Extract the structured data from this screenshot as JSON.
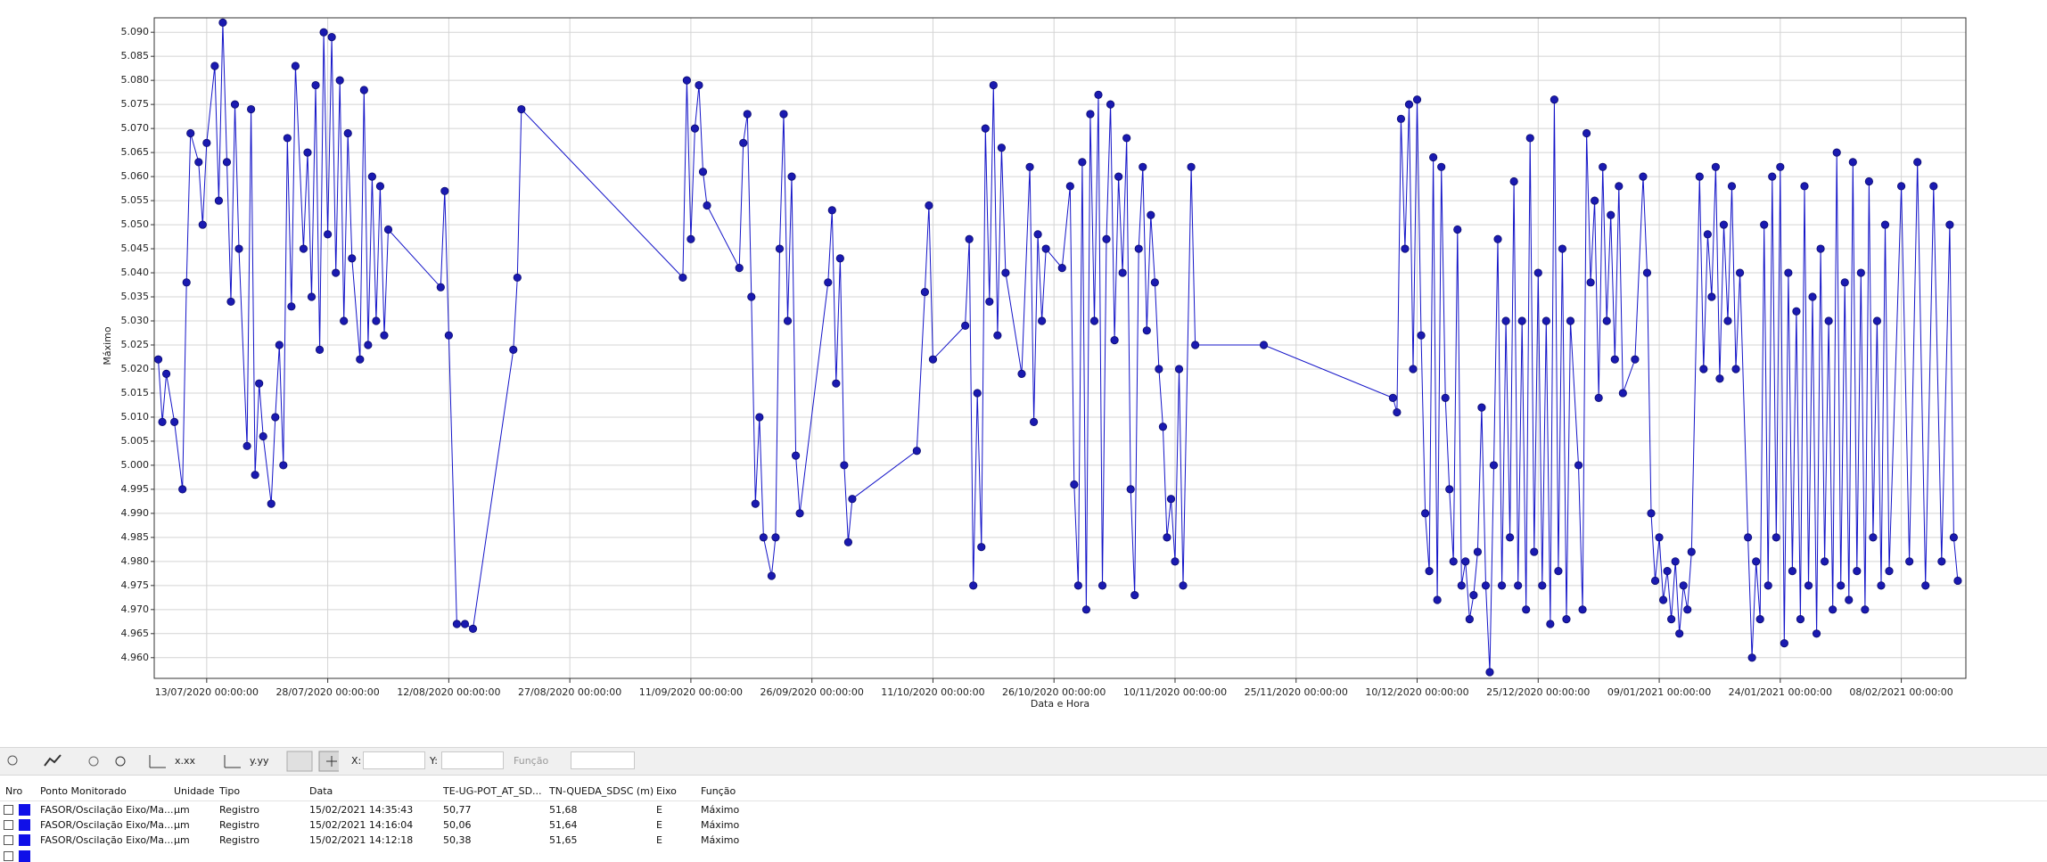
{
  "chart_data": {
    "type": "line",
    "y_label": "Máximo",
    "x_label": "Data e Hora",
    "color": "#1414c8",
    "grid": true,
    "xlim": [
      "06/07/2020 12:00:00",
      "16/02/2021 00:00:00"
    ],
    "xticks": [
      "13/07/2020 00:00:00",
      "28/07/2020 00:00:00",
      "12/08/2020 00:00:00",
      "27/08/2020 00:00:00",
      "11/09/2020 00:00:00",
      "26/09/2020 00:00:00",
      "11/10/2020 00:00:00",
      "26/10/2020 00:00:00",
      "10/11/2020 00:00:00",
      "25/11/2020 00:00:00",
      "10/12/2020 00:00:00",
      "25/12/2020 00:00:00",
      "09/01/2021 00:00:00",
      "24/01/2021 00:00:00",
      "08/02/2021 00:00:00"
    ],
    "ylim": [
      4.9557,
      5.093
    ],
    "yticks": [
      {
        "value": 4.96,
        "label": "4.960"
      },
      {
        "value": 4.965,
        "label": "4.965"
      },
      {
        "value": 4.97,
        "label": "4.970"
      },
      {
        "value": 4.975,
        "label": "4.975"
      },
      {
        "value": 4.98,
        "label": "4.980"
      },
      {
        "value": 4.985,
        "label": "4.985"
      },
      {
        "value": 4.99,
        "label": "4.990"
      },
      {
        "value": 4.995,
        "label": "4.995"
      },
      {
        "value": 5,
        "label": "5.000"
      },
      {
        "value": 5.005,
        "label": "5.005"
      },
      {
        "value": 5.01,
        "label": "5.010"
      },
      {
        "value": 5.015,
        "label": "5.015"
      },
      {
        "value": 5.02,
        "label": "5.020"
      },
      {
        "value": 5.025,
        "label": "5.025"
      },
      {
        "value": 5.03,
        "label": "5.030"
      },
      {
        "value": 5.035,
        "label": "5.035"
      },
      {
        "value": 5.04,
        "label": "5.040"
      },
      {
        "value": 5.045,
        "label": "5.045"
      },
      {
        "value": 5.05,
        "label": "5.050"
      },
      {
        "value": 5.055,
        "label": "5.055"
      },
      {
        "value": 5.06,
        "label": "5.060"
      },
      {
        "value": 5.065,
        "label": "5.065"
      },
      {
        "value": 5.07,
        "label": "5.070"
      },
      {
        "value": 5.075,
        "label": "5.075"
      },
      {
        "value": 5.08,
        "label": "5.080"
      },
      {
        "value": 5.085,
        "label": "5.085"
      },
      {
        "value": 5.09,
        "label": "5.090"
      }
    ],
    "x": [
      "07/07/2020 00:00:00",
      "07/07/2020 12:00:00",
      "08/07/2020 00:00:00",
      "09/07/2020 00:00:00",
      "10/07/2020 00:00:00",
      "10/07/2020 12:00:00",
      "11/07/2020 00:00:00",
      "12/07/2020 00:00:00",
      "12/07/2020 12:00:00",
      "13/07/2020 00:00:00",
      "14/07/2020 00:00:00",
      "14/07/2020 12:00:00",
      "15/07/2020 00:00:00",
      "15/07/2020 12:00:00",
      "16/07/2020 00:00:00",
      "16/07/2020 12:00:00",
      "17/07/2020 00:00:00",
      "18/07/2020 00:00:00",
      "18/07/2020 12:00:00",
      "19/07/2020 00:00:00",
      "19/07/2020 12:00:00",
      "20/07/2020 00:00:00",
      "21/07/2020 00:00:00",
      "21/07/2020 12:00:00",
      "22/07/2020 00:00:00",
      "22/07/2020 12:00:00",
      "23/07/2020 00:00:00",
      "23/07/2020 12:00:00",
      "24/07/2020 00:00:00",
      "25/07/2020 00:00:00",
      "25/07/2020 12:00:00",
      "26/07/2020 00:00:00",
      "26/07/2020 12:00:00",
      "27/07/2020 00:00:00",
      "27/07/2020 12:00:00",
      "28/07/2020 00:00:00",
      "28/07/2020 12:00:00",
      "29/07/2020 00:00:00",
      "29/07/2020 12:00:00",
      "30/07/2020 00:00:00",
      "30/07/2020 12:00:00",
      "31/07/2020 00:00:00",
      "01/08/2020 00:00:00",
      "01/08/2020 12:00:00",
      "02/08/2020 00:00:00",
      "02/08/2020 12:00:00",
      "03/08/2020 00:00:00",
      "03/08/2020 12:00:00",
      "04/08/2020 00:00:00",
      "04/08/2020 12:00:00",
      "11/08/2020 00:00:00",
      "11/08/2020 12:00:00",
      "12/08/2020 00:00:00",
      "13/08/2020 00:00:00",
      "14/08/2020 00:00:00",
      "15/08/2020 00:00:00",
      "20/08/2020 00:00:00",
      "20/08/2020 12:00:00",
      "21/08/2020 00:00:00",
      "10/09/2020 00:00:00",
      "10/09/2020 12:00:00",
      "11/09/2020 00:00:00",
      "11/09/2020 12:00:00",
      "12/09/2020 00:00:00",
      "12/09/2020 12:00:00",
      "13/09/2020 00:00:00",
      "17/09/2020 00:00:00",
      "17/09/2020 12:00:00",
      "18/09/2020 00:00:00",
      "18/09/2020 12:00:00",
      "19/09/2020 00:00:00",
      "19/09/2020 12:00:00",
      "20/09/2020 00:00:00",
      "21/09/2020 00:00:00",
      "21/09/2020 12:00:00",
      "22/09/2020 00:00:00",
      "22/09/2020 12:00:00",
      "23/09/2020 00:00:00",
      "23/09/2020 12:00:00",
      "24/09/2020 00:00:00",
      "24/09/2020 12:00:00",
      "28/09/2020 00:00:00",
      "28/09/2020 12:00:00",
      "29/09/2020 00:00:00",
      "29/09/2020 12:00:00",
      "30/09/2020 00:00:00",
      "30/09/2020 12:00:00",
      "01/10/2020 00:00:00",
      "09/10/2020 00:00:00",
      "10/10/2020 00:00:00",
      "10/10/2020 12:00:00",
      "11/10/2020 00:00:00",
      "15/10/2020 00:00:00",
      "15/10/2020 12:00:00",
      "16/10/2020 00:00:00",
      "16/10/2020 12:00:00",
      "17/10/2020 00:00:00",
      "17/10/2020 12:00:00",
      "18/10/2020 00:00:00",
      "18/10/2020 12:00:00",
      "19/10/2020 00:00:00",
      "19/10/2020 12:00:00",
      "20/10/2020 00:00:00",
      "22/10/2020 00:00:00",
      "23/10/2020 00:00:00",
      "23/10/2020 12:00:00",
      "24/10/2020 00:00:00",
      "24/10/2020 12:00:00",
      "25/10/2020 00:00:00",
      "27/10/2020 00:00:00",
      "28/10/2020 00:00:00",
      "28/10/2020 12:00:00",
      "29/10/2020 00:00:00",
      "29/10/2020 12:00:00",
      "30/10/2020 00:00:00",
      "30/10/2020 12:00:00",
      "31/10/2020 00:00:00",
      "31/10/2020 12:00:00",
      "01/11/2020 00:00:00",
      "01/11/2020 12:00:00",
      "02/11/2020 00:00:00",
      "02/11/2020 12:00:00",
      "03/11/2020 00:00:00",
      "03/11/2020 12:00:00",
      "04/11/2020 00:00:00",
      "04/11/2020 12:00:00",
      "05/11/2020 00:00:00",
      "05/11/2020 12:00:00",
      "06/11/2020 00:00:00",
      "06/11/2020 12:00:00",
      "07/11/2020 00:00:00",
      "07/11/2020 12:00:00",
      "08/11/2020 00:00:00",
      "08/11/2020 12:00:00",
      "09/11/2020 00:00:00",
      "09/11/2020 12:00:00",
      "10/11/2020 00:00:00",
      "10/11/2020 12:00:00",
      "11/11/2020 00:00:00",
      "12/11/2020 00:00:00",
      "12/11/2020 12:00:00",
      "21/11/2020 00:00:00",
      "07/12/2020 00:00:00",
      "07/12/2020 12:00:00",
      "08/12/2020 00:00:00",
      "08/12/2020 12:00:00",
      "09/12/2020 00:00:00",
      "09/12/2020 12:00:00",
      "10/12/2020 00:00:00",
      "10/12/2020 12:00:00",
      "11/12/2020 00:00:00",
      "11/12/2020 12:00:00",
      "12/12/2020 00:00:00",
      "12/12/2020 12:00:00",
      "13/12/2020 00:00:00",
      "13/12/2020 12:00:00",
      "14/12/2020 00:00:00",
      "14/12/2020 12:00:00",
      "15/12/2020 00:00:00",
      "15/12/2020 12:00:00",
      "16/12/2020 00:00:00",
      "16/12/2020 12:00:00",
      "17/12/2020 00:00:00",
      "17/12/2020 12:00:00",
      "18/12/2020 00:00:00",
      "18/12/2020 12:00:00",
      "19/12/2020 00:00:00",
      "19/12/2020 12:00:00",
      "20/12/2020 00:00:00",
      "20/12/2020 12:00:00",
      "21/12/2020 00:00:00",
      "21/12/2020 12:00:00",
      "22/12/2020 00:00:00",
      "22/12/2020 12:00:00",
      "23/12/2020 00:00:00",
      "23/12/2020 12:00:00",
      "24/12/2020 00:00:00",
      "24/12/2020 12:00:00",
      "25/12/2020 00:00:00",
      "25/12/2020 12:00:00",
      "26/12/2020 00:00:00",
      "26/12/2020 12:00:00",
      "27/12/2020 00:00:00",
      "27/12/2020 12:00:00",
      "28/12/2020 00:00:00",
      "28/12/2020 12:00:00",
      "29/12/2020 00:00:00",
      "30/12/2020 00:00:00",
      "30/12/2020 12:00:00",
      "31/12/2020 00:00:00",
      "31/12/2020 12:00:00",
      "01/01/2021 00:00:00",
      "01/01/2021 12:00:00",
      "02/01/2021 00:00:00",
      "02/01/2021 12:00:00",
      "03/01/2021 00:00:00",
      "03/01/2021 12:00:00",
      "04/01/2021 00:00:00",
      "04/01/2021 12:00:00",
      "06/01/2021 00:00:00",
      "07/01/2021 00:00:00",
      "07/01/2021 12:00:00",
      "08/01/2021 00:00:00",
      "08/01/2021 12:00:00",
      "09/01/2021 00:00:00",
      "09/01/2021 12:00:00",
      "10/01/2021 00:00:00",
      "10/01/2021 12:00:00",
      "11/01/2021 00:00:00",
      "11/01/2021 12:00:00",
      "12/01/2021 00:00:00",
      "12/01/2021 12:00:00",
      "13/01/2021 00:00:00",
      "14/01/2021 00:00:00",
      "14/01/2021 12:00:00",
      "15/01/2021 00:00:00",
      "15/01/2021 12:00:00",
      "16/01/2021 00:00:00",
      "16/01/2021 12:00:00",
      "17/01/2021 00:00:00",
      "17/01/2021 12:00:00",
      "18/01/2021 00:00:00",
      "18/01/2021 12:00:00",
      "19/01/2021 00:00:00",
      "20/01/2021 00:00:00",
      "20/01/2021 12:00:00",
      "21/01/2021 00:00:00",
      "21/01/2021 12:00:00",
      "22/01/2021 00:00:00",
      "22/01/2021 12:00:00",
      "23/01/2021 00:00:00",
      "23/01/2021 12:00:00",
      "24/01/2021 00:00:00",
      "24/01/2021 12:00:00",
      "25/01/2021 00:00:00",
      "25/01/2021 12:00:00",
      "26/01/2021 00:00:00",
      "26/01/2021 12:00:00",
      "27/01/2021 00:00:00",
      "27/01/2021 12:00:00",
      "28/01/2021 00:00:00",
      "28/01/2021 12:00:00",
      "29/01/2021 00:00:00",
      "29/01/2021 12:00:00",
      "30/01/2021 00:00:00",
      "30/01/2021 12:00:00",
      "31/01/2021 00:00:00",
      "31/01/2021 12:00:00",
      "01/02/2021 00:00:00",
      "01/02/2021 12:00:00",
      "02/02/2021 00:00:00",
      "02/02/2021 12:00:00",
      "03/02/2021 00:00:00",
      "03/02/2021 12:00:00",
      "04/02/2021 00:00:00",
      "04/02/2021 12:00:00",
      "05/02/2021 00:00:00",
      "05/02/2021 12:00:00",
      "06/02/2021 00:00:00",
      "06/02/2021 12:00:00",
      "08/02/2021 00:00:00",
      "09/02/2021 00:00:00",
      "10/02/2021 00:00:00",
      "11/02/2021 00:00:00",
      "12/02/2021 00:00:00",
      "13/02/2021 00:00:00",
      "14/02/2021 00:00:00",
      "14/02/2021 12:00:00",
      "15/02/2021 00:00:00"
    ],
    "values": [
      5.022,
      5.009,
      5.019,
      5.009,
      4.995,
      5.038,
      5.069,
      5.063,
      5.05,
      5.067,
      5.083,
      5.055,
      5.092,
      5.063,
      5.034,
      5.075,
      5.045,
      5.004,
      5.074,
      4.998,
      5.017,
      5.006,
      4.992,
      5.01,
      5.025,
      5,
      5.068,
      5.033,
      5.083,
      5.045,
      5.065,
      5.035,
      5.079,
      5.024,
      5.09,
      5.048,
      5.089,
      5.04,
      5.08,
      5.03,
      5.069,
      5.043,
      5.022,
      5.078,
      5.025,
      5.06,
      5.03,
      5.058,
      5.027,
      5.049,
      5.037,
      5.057,
      5.027,
      4.967,
      4.967,
      4.966,
      5.024,
      5.039,
      5.074,
      5.039,
      5.08,
      5.047,
      5.07,
      5.079,
      5.061,
      5.054,
      5.041,
      5.067,
      5.073,
      5.035,
      4.992,
      5.01,
      4.985,
      4.977,
      4.985,
      5.045,
      5.073,
      5.03,
      5.06,
      5.002,
      4.99,
      5.038,
      5.053,
      5.017,
      5.043,
      5,
      4.984,
      4.993,
      5.003,
      5.036,
      5.054,
      5.022,
      5.029,
      5.047,
      4.975,
      5.015,
      4.983,
      5.07,
      5.034,
      5.079,
      5.027,
      5.066,
      5.04,
      5.019,
      5.062,
      5.009,
      5.048,
      5.03,
      5.045,
      5.041,
      5.058,
      4.996,
      4.975,
      5.063,
      4.97,
      5.073,
      5.03,
      5.077,
      4.975,
      5.047,
      5.075,
      5.026,
      5.06,
      5.04,
      5.068,
      4.995,
      4.973,
      5.045,
      5.062,
      5.028,
      5.052,
      5.038,
      5.02,
      5.008,
      4.985,
      4.993,
      4.98,
      5.02,
      4.975,
      5.062,
      5.025,
      5.025,
      5.014,
      5.011,
      5.072,
      5.045,
      5.075,
      5.02,
      5.076,
      5.027,
      4.99,
      4.978,
      5.064,
      4.972,
      5.062,
      5.014,
      4.995,
      4.98,
      5.049,
      4.975,
      4.98,
      4.968,
      4.973,
      4.982,
      5.012,
      4.975,
      4.957,
      5,
      5.047,
      4.975,
      5.03,
      4.985,
      5.059,
      4.975,
      5.03,
      4.97,
      5.068,
      4.982,
      5.04,
      4.975,
      5.03,
      4.967,
      5.076,
      4.978,
      5.045,
      4.968,
      5.03,
      5,
      4.97,
      5.069,
      5.038,
      5.055,
      5.014,
      5.062,
      5.03,
      5.052,
      5.022,
      5.058,
      5.015,
      5.022,
      5.06,
      5.04,
      4.99,
      4.976,
      4.985,
      4.972,
      4.978,
      4.968,
      4.98,
      4.965,
      4.975,
      4.97,
      4.982,
      5.06,
      5.02,
      5.048,
      5.035,
      5.062,
      5.018,
      5.05,
      5.03,
      5.058,
      5.02,
      5.04,
      4.985,
      4.96,
      4.98,
      4.968,
      5.05,
      4.975,
      5.06,
      4.985,
      5.062,
      4.963,
      5.04,
      4.978,
      5.032,
      4.968,
      5.058,
      4.975,
      5.035,
      4.965,
      5.045,
      4.98,
      5.03,
      4.97,
      5.065,
      4.975,
      5.038,
      4.972,
      5.063,
      4.978,
      5.04,
      4.97,
      5.059,
      4.985,
      5.03,
      4.975,
      5.05,
      4.978,
      5.058,
      4.98,
      5.063,
      4.975,
      5.058,
      4.98,
      5.05,
      4.985,
      4.976
    ]
  },
  "toolbar": {
    "x_format": "x.xx",
    "y_format": "y.yy",
    "x_field": "X:",
    "y_field": "Y:",
    "function": "Função"
  },
  "table": {
    "header": [
      "Nro",
      "Ponto Monitorado",
      "Unidade",
      "Tipo",
      "Data",
      "TE-UG-POT_AT_SD...",
      "TN-QUEDA_SDSC (m)",
      "Eixo",
      "Função"
    ],
    "rows": [
      [
        "FASOR/Oscilação Eixo/Ma...",
        "µm",
        "Registro",
        "15/02/2021 14:35:43",
        "50,77",
        "51,68",
        "E",
        "Máximo"
      ],
      [
        "FASOR/Oscilação Eixo/Ma...",
        "µm",
        "Registro",
        "15/02/2021 14:16:04",
        "50,06",
        "51,64",
        "E",
        "Máximo"
      ],
      [
        "FASOR/Oscilação Eixo/Ma...",
        "µm",
        "Registro",
        "15/02/2021 14:12:18",
        "50,38",
        "51,65",
        "E",
        "Máximo"
      ]
    ]
  }
}
